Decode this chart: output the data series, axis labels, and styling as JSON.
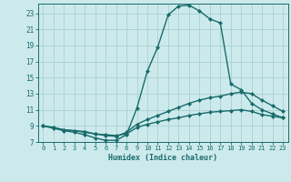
{
  "xlabel": "Humidex (Indice chaleur)",
  "bg_color": "#cceaec",
  "grid_color": "#aed4d6",
  "line_color": "#1a6b6b",
  "xlim": [
    -0.5,
    23.5
  ],
  "ylim": [
    7,
    24.2
  ],
  "xticks": [
    0,
    1,
    2,
    3,
    4,
    5,
    6,
    7,
    8,
    9,
    10,
    11,
    12,
    13,
    14,
    15,
    16,
    17,
    18,
    19,
    20,
    21,
    22,
    23
  ],
  "yticks": [
    7,
    9,
    11,
    13,
    15,
    17,
    19,
    21,
    23
  ],
  "line1_x": [
    0,
    1,
    2,
    3,
    4,
    5,
    6,
    7,
    8,
    9,
    10,
    11,
    12,
    13,
    14,
    15,
    16,
    17,
    18,
    19,
    20,
    21,
    22,
    23
  ],
  "line1_y": [
    9.0,
    8.7,
    8.4,
    8.2,
    7.9,
    7.5,
    7.2,
    7.2,
    7.9,
    11.2,
    15.8,
    18.8,
    22.8,
    23.9,
    24.0,
    23.3,
    22.3,
    21.8,
    14.2,
    13.5,
    11.8,
    11.0,
    10.5,
    10.0
  ],
  "line2_x": [
    0,
    1,
    2,
    3,
    4,
    5,
    6,
    7,
    8,
    9,
    10,
    11,
    12,
    13,
    14,
    15,
    16,
    17,
    18,
    19,
    20,
    21,
    22,
    23
  ],
  "line2_y": [
    9.0,
    8.8,
    8.5,
    8.4,
    8.2,
    8.0,
    7.8,
    7.7,
    8.2,
    9.2,
    9.8,
    10.3,
    10.8,
    11.3,
    11.8,
    12.2,
    12.5,
    12.7,
    13.0,
    13.2,
    13.0,
    12.2,
    11.5,
    10.8
  ],
  "line3_x": [
    0,
    1,
    2,
    3,
    4,
    5,
    6,
    7,
    8,
    9,
    10,
    11,
    12,
    13,
    14,
    15,
    16,
    17,
    18,
    19,
    20,
    21,
    22,
    23
  ],
  "line3_y": [
    9.0,
    8.8,
    8.5,
    8.4,
    8.3,
    8.0,
    7.9,
    7.8,
    8.0,
    8.8,
    9.2,
    9.5,
    9.8,
    10.0,
    10.3,
    10.5,
    10.7,
    10.8,
    10.9,
    11.0,
    10.8,
    10.4,
    10.2,
    10.0
  ]
}
